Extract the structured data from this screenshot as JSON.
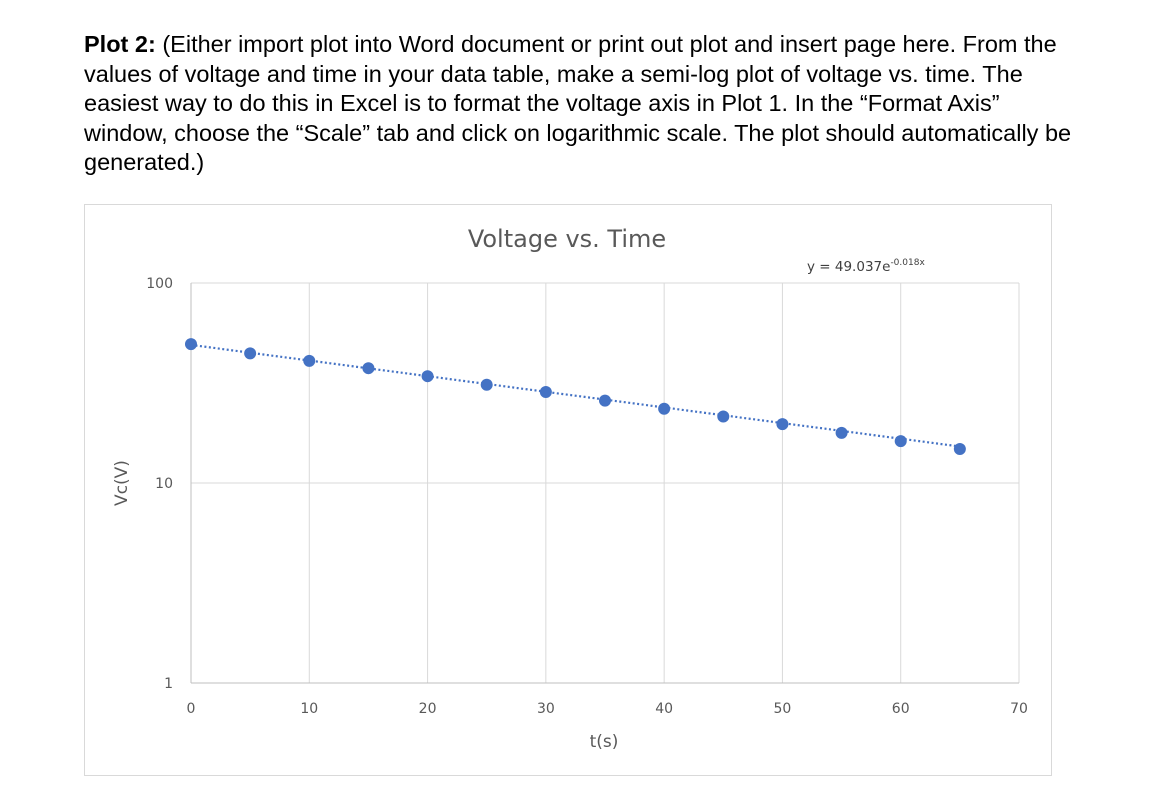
{
  "instructions": {
    "label": "Plot 2:",
    "text": " (Either import plot into Word document or print out plot and insert page here. From the values of voltage and time in your data table, make a semi-log plot of voltage vs. time.  The easiest way to do this in Excel is to format the voltage axis in Plot 1.  In the “Format Axis” window, choose the “Scale” tab and click on logarithmic scale.  The plot should automatically be generated.)"
  },
  "chart_data": {
    "type": "scatter",
    "title": "Voltage vs. Time",
    "xlabel": "t(s)",
    "ylabel": "Vc(V)",
    "xlim": [
      0,
      70
    ],
    "ylim": [
      1,
      100
    ],
    "yscale": "log",
    "grid": true,
    "x_ticks": [
      "0",
      "10",
      "20",
      "30",
      "40",
      "50",
      "60",
      "70"
    ],
    "y_ticks": [
      "1",
      "10",
      "100"
    ],
    "series": [
      {
        "x": [
          0,
          5,
          10,
          15,
          20,
          25,
          30,
          35,
          40,
          45,
          50,
          55,
          60,
          65
        ],
        "y": [
          49.5,
          44.5,
          40.8,
          37.5,
          34.2,
          31.0,
          28.5,
          25.8,
          23.5,
          21.5,
          19.7,
          17.8,
          16.2,
          14.8
        ],
        "color": "#4472c4"
      }
    ],
    "trendline": {
      "type": "exponential",
      "style": "dotted",
      "color": "#4472c4",
      "a": 49.037,
      "b": -0.018,
      "x_range": [
        0,
        65
      ],
      "equation_base": "y = 49.037e",
      "equation_exponent": "-0.018x"
    }
  }
}
